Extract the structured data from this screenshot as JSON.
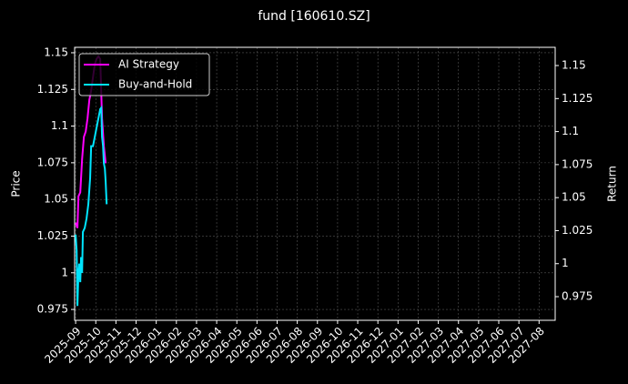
{
  "chart_data": {
    "type": "line",
    "title": "fund [160610.SZ]",
    "ylabel": "Price",
    "y2label": "Return",
    "ylim": [
      0.9676,
      1.1537
    ],
    "yticks": [
      0.975,
      1.0,
      1.025,
      1.05,
      1.075,
      1.1,
      1.125,
      1.15
    ],
    "y2lim": [
      0.9571,
      1.1638
    ],
    "y2ticks": [
      0.975,
      1.0,
      1.025,
      1.05,
      1.075,
      1.1,
      1.125,
      1.15
    ],
    "xlim": [
      -0.05,
      23.8
    ],
    "xticks": [
      {
        "value": 0,
        "label": "2025-09"
      },
      {
        "value": 1,
        "label": "2025-10"
      },
      {
        "value": 2,
        "label": "2025-11"
      },
      {
        "value": 3,
        "label": "2025-12"
      },
      {
        "value": 4,
        "label": "2026-01"
      },
      {
        "value": 5,
        "label": "2026-02"
      },
      {
        "value": 6,
        "label": "2026-03"
      },
      {
        "value": 7,
        "label": "2026-04"
      },
      {
        "value": 8,
        "label": "2026-05"
      },
      {
        "value": 9,
        "label": "2026-06"
      },
      {
        "value": 10,
        "label": "2026-07"
      },
      {
        "value": 11,
        "label": "2026-08"
      },
      {
        "value": 12,
        "label": "2026-09"
      },
      {
        "value": 13,
        "label": "2026-10"
      },
      {
        "value": 14,
        "label": "2026-11"
      },
      {
        "value": 15,
        "label": "2026-12"
      },
      {
        "value": 16,
        "label": "2027-01"
      },
      {
        "value": 17,
        "label": "2027-02"
      },
      {
        "value": 18,
        "label": "2027-03"
      },
      {
        "value": 19,
        "label": "2027-04"
      },
      {
        "value": 20,
        "label": "2027-05"
      },
      {
        "value": 21,
        "label": "2027-06"
      },
      {
        "value": 22,
        "label": "2027-07"
      },
      {
        "value": 23,
        "label": "2027-08"
      }
    ],
    "grid": true,
    "legend": "upper left",
    "series": [
      {
        "name": "AI Strategy",
        "color": "#ff00ff",
        "axis": "y2",
        "x": [
          0,
          0.09,
          0.14,
          0.23,
          0.32,
          0.41,
          0.5,
          0.59,
          0.68,
          0.77,
          0.86,
          0.95,
          1.04,
          1.13,
          1.22,
          1.31,
          1.4,
          1.49
        ],
        "values": [
          1.031,
          1.027,
          1.051,
          1.054,
          1.079,
          1.096,
          1.1,
          1.11,
          1.124,
          1.131,
          1.141,
          1.151,
          1.155,
          1.157,
          1.155,
          1.11,
          1.089,
          1.076
        ]
      },
      {
        "name": "Buy-and-Hold",
        "color": "#00e5ff",
        "axis": "y2",
        "x": [
          0,
          0.05,
          0.09,
          0.14,
          0.18,
          0.23,
          0.27,
          0.32,
          0.36,
          0.45,
          0.54,
          0.63,
          0.72,
          0.77,
          0.86,
          0.95,
          1.04,
          1.13,
          1.22,
          1.27,
          1.31,
          1.36,
          1.4,
          1.45,
          1.49,
          1.54
        ],
        "values": [
          1.022,
          1.01,
          0.968,
          0.993,
          1.0,
          0.986,
          1.005,
          0.993,
          1.024,
          1.027,
          1.034,
          1.045,
          1.065,
          1.089,
          1.089,
          1.096,
          1.103,
          1.11,
          1.117,
          1.118,
          1.096,
          1.089,
          1.076,
          1.072,
          1.062,
          1.045
        ]
      }
    ]
  }
}
